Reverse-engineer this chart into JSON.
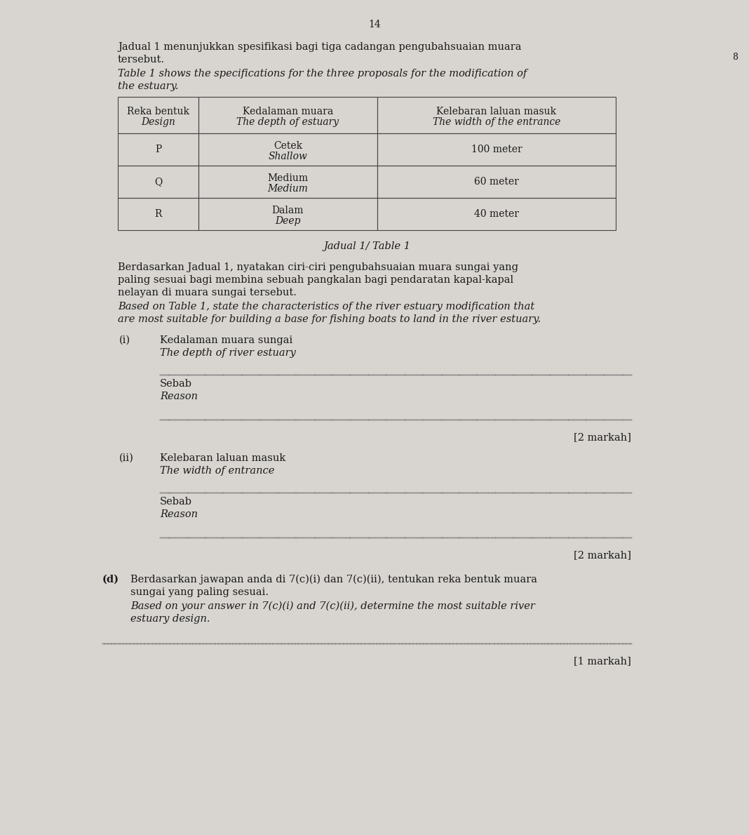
{
  "page_number": "14",
  "bg_color": "#d8d5d0",
  "text_color": "#1a1a1a",
  "intro_text_line1": "Jadual 1 menunjukkan spesifikasi bagi tiga cadangan pengubahsuaian muara",
  "intro_text_line2": "tersebut.",
  "intro_text_eng_line1": "Table 1 shows the specifications for the three proposals for the modification of",
  "intro_text_eng_line2": "the estuary.",
  "table_caption": "Jadual 1/ Table 1",
  "table_header_col1_line1": "Reka bentuk",
  "table_header_col1_line2": "Design",
  "table_header_col2_line1": "Kedalaman muara",
  "table_header_col2_line2": "The depth of estuary",
  "table_header_col3_line1": "Kelebaran laluan masuk",
  "table_header_col3_line2": "The width of the entrance",
  "row_p_col1": "P",
  "row_p_col2_line1": "Cetek",
  "row_p_col2_line2": "Shallow",
  "row_p_col3": "100 meter",
  "row_q_col1": "Q",
  "row_q_col2_line1": "Medium",
  "row_q_col2_line2": "Medium",
  "row_q_col3": "60 meter",
  "row_r_col1": "R",
  "row_r_col2_line1": "Dalam",
  "row_r_col2_line2": "Deep",
  "row_r_col3": "40 meter",
  "q_intro_m_l1": "Berdasarkan Jadual 1, nyatakan ciri-ciri pengubahsuaian muara sungai yang",
  "q_intro_m_l2": "paling sesuai bagi membina sebuah pangkalan bagi pendaratan kapal-kapal",
  "q_intro_m_l3": "nelayan di muara sungai tersebut.",
  "q_intro_e_l1": "Based on Table 1, state the characteristics of the river estuary modification that",
  "q_intro_e_l2": "are most suitable for building a base for fishing boats to land in the river estuary.",
  "qi_label": "(i)",
  "qi_malay": "Kedalaman muara sungai",
  "qi_english": "The depth of river estuary",
  "sebab1": "Sebab",
  "reason1": "Reason",
  "marks1": "[2 markah]",
  "qii_label": "(ii)",
  "qii_malay": "Kelebaran laluan masuk",
  "qii_english": "The width of entrance",
  "sebab2": "Sebab",
  "reason2": "Reason",
  "marks2": "[2 markah]",
  "qd_label": "(d)",
  "qd_m_l1": "Berdasarkan jawapan anda di 7(c)(i) dan 7(c)(ii), tentukan reka bentuk muara",
  "qd_m_l2": "sungai yang paling sesuai.",
  "qd_e_l1": "Based on your answer in 7(c)(i) and 7(c)(ii), determine the most suitable river",
  "qd_e_l2": "estuary design.",
  "marks3": "[1 markah]",
  "dot_color": "#777777",
  "table_border_color": "#444444",
  "right_mark": "8"
}
